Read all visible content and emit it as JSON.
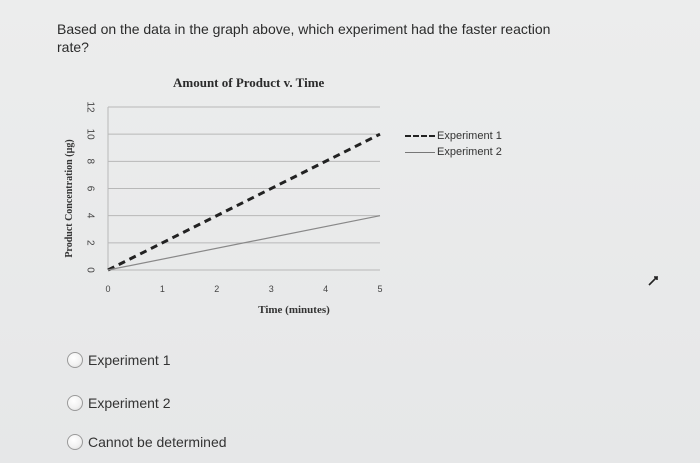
{
  "question": {
    "text_line1": "Based on the data in the graph above, which experiment had the faster reaction",
    "text_line2": "rate?"
  },
  "chart_data": {
    "type": "line",
    "title": "Amount of Product v. Time",
    "xlabel": "Time (minutes)",
    "ylabel": "Product Concentration (µg)",
    "x_ticks": [
      "0",
      "1",
      "2",
      "3",
      "4",
      "5"
    ],
    "y_ticks": [
      "0",
      "2",
      "4",
      "6",
      "8",
      "10",
      "12"
    ],
    "xlim": [
      0,
      5
    ],
    "ylim": [
      0,
      12
    ],
    "grid": "horizontal",
    "legend_position": "right",
    "series": [
      {
        "name": "Experiment 1",
        "style": "dashed",
        "color": "#222222",
        "x": [
          0,
          5
        ],
        "y": [
          0,
          10
        ]
      },
      {
        "name": "Experiment 2",
        "style": "solid",
        "color": "#888888",
        "x": [
          0,
          5
        ],
        "y": [
          0,
          4
        ]
      }
    ]
  },
  "legend": {
    "item1": "Experiment 1",
    "item2": "Experiment 2"
  },
  "options": [
    {
      "label": "Experiment 1",
      "selected": false
    },
    {
      "label": "Experiment 2",
      "selected": false
    },
    {
      "label": "Cannot be determined",
      "selected": false
    }
  ]
}
